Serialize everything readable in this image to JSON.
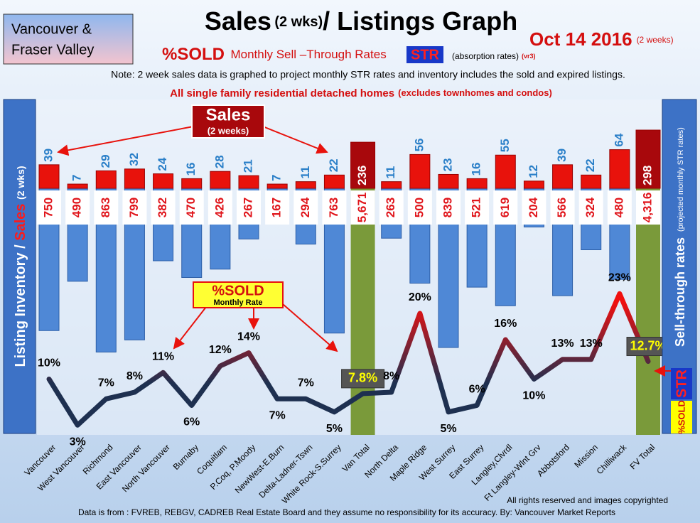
{
  "chart_data": {
    "type": "bar",
    "region": [
      "Vancouver &",
      "Fraser Valley"
    ],
    "title": {
      "main": "Sales",
      "unit": "(2 wks)",
      "rest": "/ Listings Graph"
    },
    "date": "Oct 14 2016",
    "date_note": "(2 weeks)",
    "subtitle": {
      "sold": "%SOLD",
      "text": "Monthly Sell –Through Rates",
      "str": "STR",
      "paren": "(absorption rates)",
      "version": "(vr3)"
    },
    "note": "Note: 2 week sales data is graphed to project monthly STR rates and inventory includes the sold and expired listings.",
    "scope": {
      "main": "All single family residential detached homes",
      "paren": "(excludes townhomes and condos)"
    },
    "y_label": {
      "inventory": "Listing Inventory",
      "sep": "/",
      "sales": "Sales",
      "unit": "(2 wks)"
    },
    "y2_label": {
      "main": "Sell-through rates",
      "paren": "(projected monthly STR rates)",
      "str": "STR",
      "sold": "%SOLD"
    },
    "sales_callout": {
      "title": "Sales",
      "sub": "(2 weeks)"
    },
    "sold_callout": {
      "title": "%SOLD",
      "sub": "Monthly Rate"
    },
    "categories": [
      "Vancouver",
      "West Vancouver",
      "Richmond",
      "East Vancouver",
      "North Vancouver",
      "Burnaby",
      "Coquitlam",
      "P.Coq, P.Moody",
      "NewWest-E.Burn",
      "Delta-Ladner-Tswn",
      "White Rock-S.Surrey",
      "Van Total",
      "North Delta",
      "Maple Ridge",
      "West Surrey",
      "East Surrey",
      "Langley,Clvrdl",
      "Ft Langley-Wlnt Grv",
      "Abbotsford",
      "Mission",
      "Chilliwack",
      "FV Total"
    ],
    "total_indices": [
      11,
      21
    ],
    "total_color": "#7a9a3a",
    "sales": {
      "color": "#e8120c",
      "total_color": "#a8080c",
      "label_color": "#2a7fc8",
      "values": [
        39,
        7,
        29,
        32,
        24,
        16,
        28,
        21,
        7,
        11,
        22,
        236,
        11,
        56,
        23,
        16,
        55,
        12,
        39,
        22,
        64,
        298
      ]
    },
    "listings": {
      "color": "#4f88d6",
      "label_color": "#e0141a",
      "values": [
        750,
        490,
        863,
        799,
        382,
        470,
        426,
        267,
        167,
        294,
        763,
        5671,
        263,
        500,
        839,
        521,
        619,
        204,
        566,
        324,
        480,
        4316
      ],
      "value_labels": [
        "750",
        "490",
        "863",
        "799",
        "382",
        "470",
        "426",
        "267",
        "167",
        "294",
        "763",
        "5,671",
        "263",
        "500",
        "839",
        "521",
        "619",
        "204",
        "566",
        "324",
        "480",
        "4,316"
      ]
    },
    "str": {
      "color_low": "#1e3050",
      "color_high": "#f01010",
      "values": [
        10,
        3,
        7,
        8,
        11,
        6,
        12,
        14,
        7,
        7,
        5,
        7.8,
        8,
        20,
        5,
        6,
        16,
        10,
        13,
        13,
        23,
        12.7
      ],
      "value_labels": [
        "10%",
        "3%",
        "7%",
        "8%",
        "11%",
        "6%",
        "12%",
        "14%",
        "7%",
        "7%",
        "5%",
        "7.8%",
        "8%",
        "20%",
        "5%",
        "6%",
        "16%",
        "10%",
        "13%",
        "13%",
        "23%",
        "12.7%"
      ]
    },
    "footer": "All rights reserved and  images copyrighted",
    "source": "Data is from : FVREB, REBGV, CADREB Real Estate Board and they assume no responsibility for its accuracy. By: Vancouver Market Reports"
  }
}
